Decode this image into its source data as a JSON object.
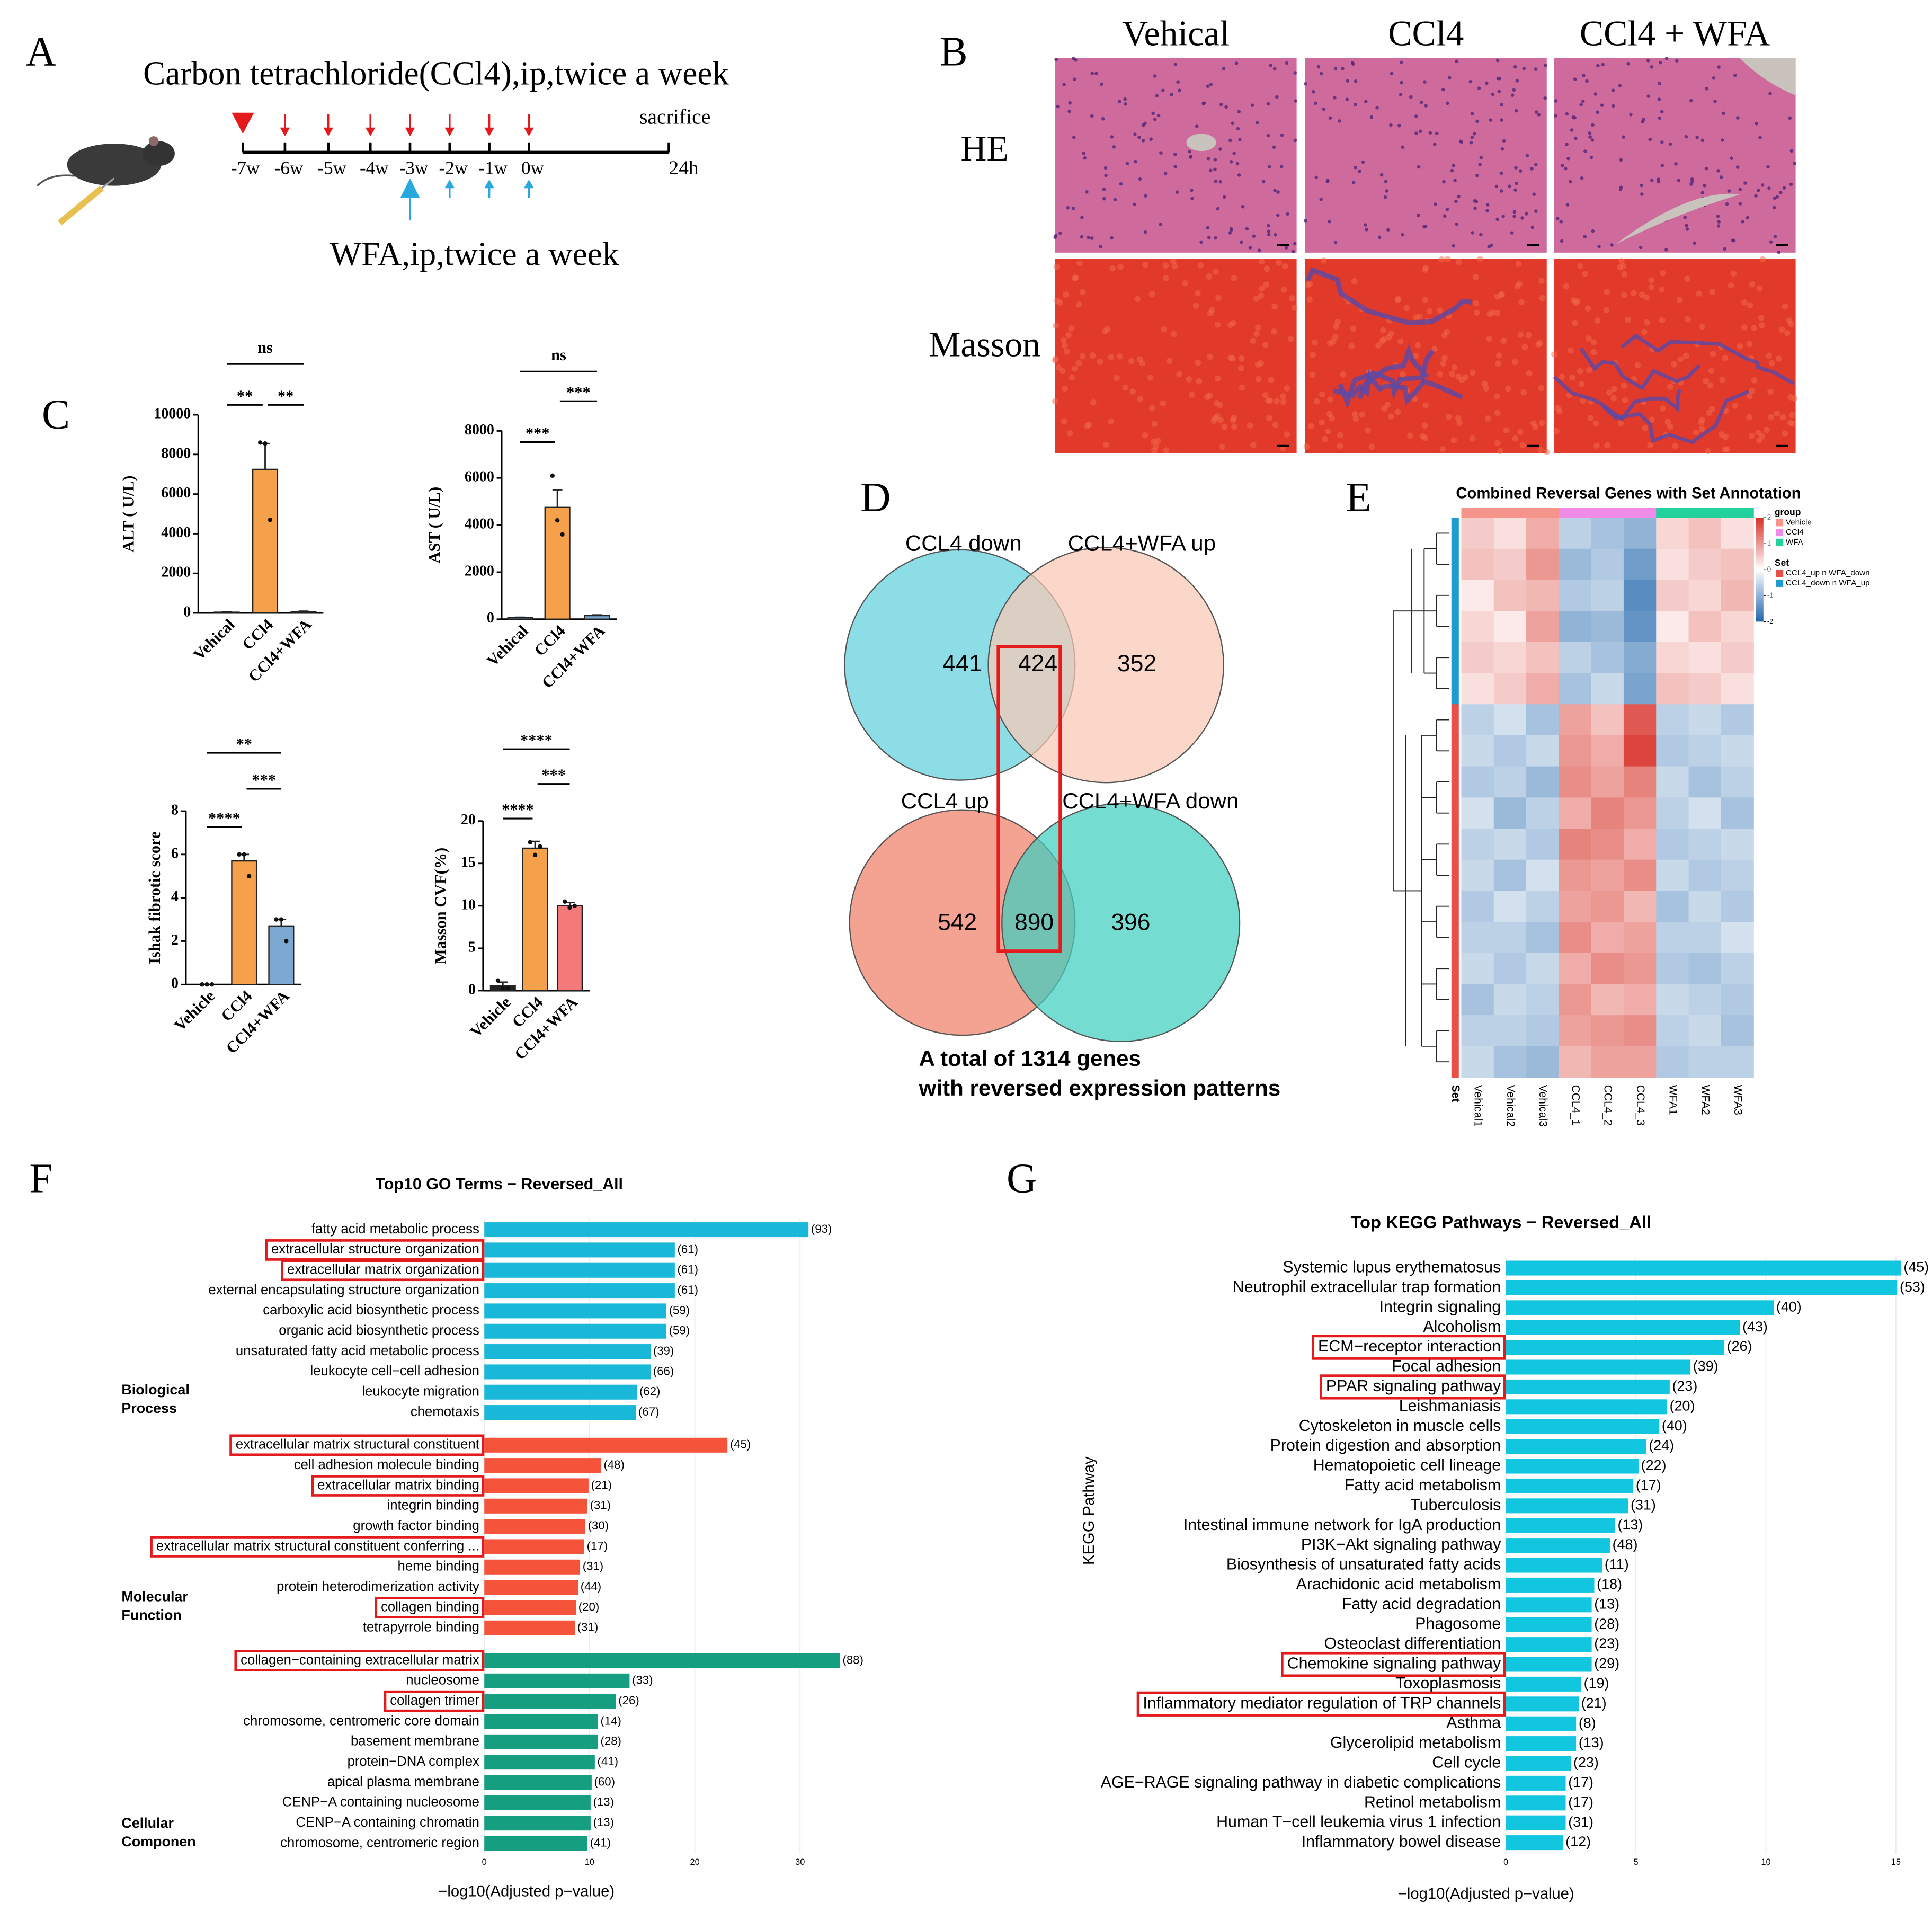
{
  "panel_labels": [
    "A",
    "B",
    "C",
    "D",
    "E",
    "F",
    "G"
  ],
  "timeline": {
    "title": "Carbon tetrachloride(CCl4),ip,twice a week",
    "ticks": [
      "-7w",
      "-6w",
      "-5w",
      "-4w",
      "-3w",
      "-2w",
      "-1w",
      "0w"
    ],
    "end_title": "sacrifice",
    "end_label": "24h",
    "wfa_label": "WFA,ip,twice a week"
  },
  "histology": {
    "columns": [
      "Vehical",
      "CCl4",
      "CCl4 + WFA"
    ],
    "rows": [
      "HE",
      "Masson"
    ]
  },
  "chart_data": [
    {
      "type": "bar",
      "y_label": "ALT ( U/L)",
      "categories": [
        "Vehical",
        "CCl4",
        "CCl4+WFA"
      ],
      "values": [
        40,
        7250,
        70
      ],
      "errors": [
        15,
        1300,
        20
      ],
      "points": [
        [],
        [
          8600,
          8550,
          4700
        ],
        []
      ],
      "colors": [
        "#f5a04a",
        "#f5a04a",
        "#f5a04a"
      ],
      "ylim": [
        0,
        10000
      ],
      "yticks": [
        0,
        2000,
        4000,
        6000,
        8000,
        10000
      ],
      "significance": [
        "ns",
        "**",
        "**"
      ]
    },
    {
      "type": "bar",
      "y_label": "AST ( U/L)",
      "categories": [
        "Vehical",
        "CCl4",
        "CCl4+WFA"
      ],
      "values": [
        60,
        4750,
        150
      ],
      "errors": [
        20,
        750,
        30
      ],
      "points": [
        [],
        [
          6100,
          4200,
          3600
        ],
        []
      ],
      "colors": [
        "#7ba7d1",
        "#f5a04a",
        "#7ba7d1"
      ],
      "ylim": [
        0,
        8000
      ],
      "yticks": [
        0,
        2000,
        4000,
        6000,
        8000
      ],
      "significance": [
        "ns",
        "***",
        "***"
      ]
    },
    {
      "type": "bar",
      "y_label": "Ishak fibrotic score",
      "categories": [
        "Vehicle",
        "CCl4",
        "CCl4+WFA"
      ],
      "values": [
        0,
        5.7,
        2.7
      ],
      "errors": [
        0,
        0.3,
        0.3
      ],
      "points": [
        [
          0,
          0,
          0
        ],
        [
          6,
          6,
          5
        ],
        [
          3,
          3,
          2
        ]
      ],
      "colors": [
        "#f5a04a",
        "#f5a04a",
        "#7ba7d1"
      ],
      "ylim": [
        0,
        8
      ],
      "yticks": [
        0,
        2,
        4,
        6,
        8
      ],
      "significance": [
        "**",
        "****",
        "***"
      ]
    },
    {
      "type": "bar",
      "y_label": "Masson CVF(%)",
      "categories": [
        "Vehicle",
        "CCl4",
        "CCl4+WFA"
      ],
      "values": [
        0.6,
        16.8,
        10.0
      ],
      "errors": [
        0.4,
        0.8,
        0.4
      ],
      "points": [
        [
          1.2,
          0.3,
          0.3
        ],
        [
          17.5,
          16,
          17
        ],
        [
          10.5,
          9.8,
          10
        ]
      ],
      "colors": [
        "#222222",
        "#f5a04a",
        "#f47a7a"
      ],
      "ylim": [
        0,
        20
      ],
      "yticks": [
        0,
        5,
        10,
        15,
        20
      ],
      "significance": [
        "****",
        "****",
        "***"
      ]
    },
    {
      "type": "venn",
      "sets": [
        "CCL4 down",
        "CCL4+WFA up",
        "CCL4 up",
        "CCL4+WFA down"
      ],
      "colors": [
        "#8ddde6",
        "#f9c7b5",
        "#f4a292",
        "#40cfc0"
      ],
      "counts": [
        441,
        424,
        352,
        542,
        890,
        396
      ],
      "caption": [
        "A total of 1314 genes",
        "with reversed expression patterns"
      ]
    },
    {
      "type": "heatmap",
      "title": "Combined Reversal Genes with Set Annotation",
      "columns": [
        "Vehical1",
        "Vehical2",
        "Vehical3",
        "CCL4_1",
        "CCL4_2",
        "CCL4_3",
        "WFA1",
        "WFA2",
        "WFA3"
      ],
      "column_groups": [
        0,
        0,
        0,
        1,
        1,
        1,
        2,
        2,
        2
      ],
      "set_label": "Set",
      "values": [
        [
          0.5,
          0.3,
          0.8,
          -0.6,
          -0.8,
          -1.0,
          0.4,
          0.6,
          0.3
        ],
        [
          0.6,
          0.5,
          1.0,
          -0.9,
          -0.7,
          -1.3,
          0.3,
          0.5,
          0.6
        ],
        [
          0.2,
          0.6,
          0.7,
          -0.7,
          -0.6,
          -1.5,
          0.5,
          0.4,
          0.7
        ],
        [
          0.4,
          0.2,
          0.9,
          -1.0,
          -0.9,
          -1.4,
          0.2,
          0.6,
          0.4
        ],
        [
          0.5,
          0.4,
          0.6,
          -0.6,
          -0.8,
          -1.1,
          0.4,
          0.3,
          0.5
        ],
        [
          0.3,
          0.5,
          0.8,
          -0.8,
          -0.5,
          -1.2,
          0.6,
          0.5,
          0.3
        ],
        [
          -0.6,
          -0.4,
          -0.8,
          0.9,
          0.6,
          1.6,
          -0.6,
          -0.5,
          -0.7
        ],
        [
          -0.5,
          -0.7,
          -0.5,
          1.0,
          0.8,
          1.8,
          -0.7,
          -0.6,
          -0.5
        ],
        [
          -0.7,
          -0.6,
          -0.9,
          1.1,
          0.9,
          1.2,
          -0.5,
          -0.8,
          -0.6
        ],
        [
          -0.4,
          -0.9,
          -0.6,
          0.8,
          1.2,
          1.0,
          -0.6,
          -0.4,
          -0.8
        ],
        [
          -0.6,
          -0.5,
          -0.7,
          1.2,
          1.1,
          0.8,
          -0.7,
          -0.6,
          -0.5
        ],
        [
          -0.5,
          -0.8,
          -0.4,
          1.0,
          0.9,
          1.1,
          -0.5,
          -0.7,
          -0.6
        ],
        [
          -0.7,
          -0.4,
          -0.6,
          0.9,
          1.0,
          0.7,
          -0.8,
          -0.5,
          -0.7
        ],
        [
          -0.6,
          -0.6,
          -0.8,
          1.1,
          0.8,
          0.9,
          -0.6,
          -0.6,
          -0.4
        ],
        [
          -0.5,
          -0.7,
          -0.5,
          0.8,
          1.1,
          1.0,
          -0.7,
          -0.8,
          -0.6
        ],
        [
          -0.8,
          -0.5,
          -0.6,
          1.0,
          0.7,
          0.8,
          -0.5,
          -0.6,
          -0.7
        ],
        [
          -0.6,
          -0.6,
          -0.7,
          0.9,
          1.0,
          1.1,
          -0.6,
          -0.5,
          -0.8
        ],
        [
          -0.5,
          -0.8,
          -0.9,
          0.7,
          0.9,
          0.9,
          -0.7,
          -0.6,
          -0.6
        ]
      ],
      "row_set": [
        1,
        1,
        1,
        1,
        1,
        1,
        0,
        0,
        0,
        0,
        0,
        0,
        0,
        0,
        0,
        0,
        0,
        0
      ],
      "zlim": [
        -2,
        2
      ],
      "zticks": [
        2,
        1,
        0,
        -1,
        -2
      ],
      "colors": [
        "#2166ac",
        "#ffffff",
        "#d73027"
      ],
      "group_legend": {
        "title": "group",
        "items": [
          "Vehicle",
          "CCl4",
          "WFA"
        ],
        "colors": [
          "#f4948a",
          "#f08be8",
          "#22d19c"
        ]
      },
      "set_legend": {
        "title": "Set",
        "items": [
          "CCL4_up n WFA_down",
          "CCL4_down n WFA_up"
        ],
        "colors": [
          "#e8504a",
          "#1f9bd0"
        ]
      }
    },
    {
      "type": "barh_grouped",
      "title": "Top10 GO Terms − Reversed_All",
      "x_label": "−log10(Adjusted p−value)",
      "xlim": [
        0,
        34.5
      ],
      "xticks": [
        0,
        10,
        20,
        30
      ],
      "grid": true,
      "groups": [
        {
          "name": [
            "Biological",
            "Process"
          ],
          "color": "#1ab8d8",
          "categories": [
            "fatty acid metabolic process",
            "extracellular structure organization",
            "extracellular matrix organization",
            "external encapsulating structure organization",
            "carboxylic acid biosynthetic process",
            "organic acid biosynthetic process",
            "unsaturated fatty acid metabolic process",
            "leukocyte cell−cell adhesion",
            "leukocyte migration",
            "chemotaxis"
          ],
          "values": [
            30.8,
            18.1,
            18.1,
            18.1,
            17.3,
            17.3,
            15.8,
            15.8,
            14.5,
            14.4
          ],
          "count_labels": [
            "(93)",
            "(61)",
            "(61)",
            "(61)",
            "(59)",
            "(59)",
            "(39)",
            "(66)",
            "(62)",
            "(67)"
          ],
          "highlight": [
            false,
            true,
            true,
            false,
            false,
            false,
            false,
            false,
            false,
            false
          ]
        },
        {
          "name": [
            "Molecular",
            "Function"
          ],
          "color": "#f5533a",
          "categories": [
            "extracellular matrix structural constituent",
            "cell adhesion molecule binding",
            "extracellular matrix binding",
            "integrin binding",
            "growth factor binding",
            "extracellular matrix structural constituent conferring ...",
            "heme binding",
            "protein heterodimerization activity",
            "collagen binding",
            "tetrapyrrole binding"
          ],
          "values": [
            23.1,
            11.1,
            9.9,
            9.8,
            9.6,
            9.5,
            9.1,
            8.9,
            8.7,
            8.6
          ],
          "count_labels": [
            "(45)",
            "(48)",
            "(21)",
            "(31)",
            "(30)",
            "(17)",
            "(31)",
            "(44)",
            "(20)",
            "(31)"
          ],
          "highlight": [
            true,
            false,
            true,
            false,
            false,
            true,
            false,
            false,
            true,
            false
          ]
        },
        {
          "name": [
            "Cellular",
            "Componen"
          ],
          "color": "#159e80",
          "categories": [
            "collagen−containing extracellular matrix",
            "nucleosome",
            "collagen trimer",
            "chromosome, centromeric core domain",
            "basement membrane",
            "protein−DNA complex",
            "apical plasma membrane",
            "CENP−A containing nucleosome",
            "CENP−A containing chromatin",
            "chromosome, centromeric region"
          ],
          "values": [
            33.8,
            13.8,
            12.5,
            10.8,
            10.8,
            10.5,
            10.2,
            10.1,
            10.1,
            9.8
          ],
          "count_labels": [
            "(88)",
            "(33)",
            "(26)",
            "(14)",
            "(28)",
            "(41)",
            "(60)",
            "(13)",
            "(13)",
            "(41)"
          ],
          "highlight": [
            true,
            false,
            true,
            false,
            false,
            false,
            false,
            false,
            false,
            false
          ]
        }
      ]
    },
    {
      "type": "barh",
      "title": "Top KEGG Pathways − Reversed_All",
      "x_label": "−log10(Adjusted p−value)",
      "y_label": "KEGG Pathway",
      "xlim": [
        0,
        15.5
      ],
      "xticks": [
        0,
        5,
        10,
        15
      ],
      "grid": true,
      "color": "#13c6e0",
      "categories": [
        "Systemic lupus erythematosus",
        "Neutrophil extracellular trap formation",
        "Integrin signaling",
        "Alcoholism",
        "ECM−receptor interaction",
        "Focal adhesion",
        "PPAR signaling pathway",
        "Leishmaniasis",
        "Cytoskeleton in muscle cells",
        "Protein digestion and absorption",
        "Hematopoietic cell lineage",
        "Fatty acid metabolism",
        "Tuberculosis",
        "Intestinal immune network for IgA production",
        "PI3K−Akt signaling pathway",
        "Biosynthesis of unsaturated fatty acids",
        "Arachidonic acid metabolism",
        "Fatty acid degradation",
        "Phagosome",
        "Osteoclast differentiation",
        "Chemokine signaling pathway",
        "Toxoplasmosis",
        "Inflammatory mediator regulation of TRP channels",
        "Asthma",
        "Glycerolipid metabolism",
        "Cell cycle",
        "AGE−RAGE signaling pathway in diabetic complications",
        "Retinol metabolism",
        "Human T−cell leukemia virus 1 infection",
        "Inflammatory bowel disease"
      ],
      "values": [
        15.2,
        15.05,
        10.3,
        9.0,
        8.4,
        7.1,
        6.3,
        6.2,
        5.9,
        5.4,
        5.1,
        4.9,
        4.7,
        4.2,
        4.0,
        3.7,
        3.4,
        3.3,
        3.3,
        3.3,
        3.3,
        2.9,
        2.8,
        2.7,
        2.7,
        2.5,
        2.3,
        2.3,
        2.3,
        2.2
      ],
      "count_labels": [
        "(45)",
        "(53)",
        "(40)",
        "(43)",
        "(26)",
        "(39)",
        "(23)",
        "(20)",
        "(40)",
        "(24)",
        "(22)",
        "(17)",
        "(31)",
        "(13)",
        "(48)",
        "(11)",
        "(18)",
        "(13)",
        "(28)",
        "(23)",
        "(29)",
        "(19)",
        "(21)",
        "(8)",
        "(13)",
        "(23)",
        "(17)",
        "(17)",
        "(31)",
        "(12)"
      ],
      "highlight": [
        false,
        false,
        false,
        false,
        true,
        false,
        true,
        false,
        false,
        false,
        false,
        false,
        false,
        false,
        false,
        false,
        false,
        false,
        false,
        false,
        true,
        false,
        true,
        false,
        false,
        false,
        false,
        false,
        false,
        false
      ]
    }
  ]
}
